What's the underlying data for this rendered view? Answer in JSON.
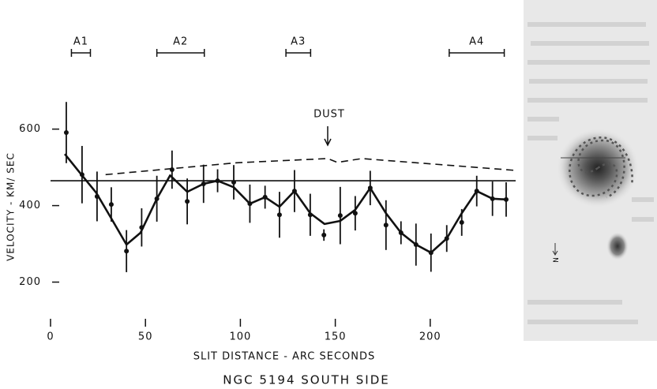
{
  "chart_data": {
    "type": "line",
    "caption": "NGC 5194    SOUTH SIDE",
    "xlabel": "SLIT DISTANCE - ARC SECONDS",
    "ylabel": "VELOCITY - KM/ SEC",
    "xlim": [
      0,
      245
    ],
    "ylim": [
      100,
      690
    ],
    "xticks": [
      0,
      50,
      100,
      150,
      200
    ],
    "yticks": [
      200,
      400,
      600
    ],
    "annotation": {
      "text": "DUST",
      "x": 146
    },
    "regions": [
      {
        "label": "A1",
        "x": [
          11,
          21
        ]
      },
      {
        "label": "A2",
        "x": [
          56,
          81
        ]
      },
      {
        "label": "A3",
        "x": [
          124,
          137
        ]
      },
      {
        "label": "A4",
        "x": [
          210,
          239
        ]
      }
    ],
    "photo_label": "N",
    "series": [
      {
        "type": "scatter",
        "color": "#111111",
        "x": [
          8.3,
          16.6,
          24.5,
          32,
          40,
          48,
          56,
          64,
          72,
          80.6,
          88,
          96.5,
          105,
          113,
          120.6,
          128.5,
          136.8,
          144,
          152.6,
          160.5,
          168.4,
          176.7,
          184.6,
          192.5,
          200.4,
          208.7,
          216.6,
          224.5,
          232.8,
          240
        ],
        "values": [
          591,
          481,
          424,
          403,
          281,
          343,
          418,
          494,
          411,
          457,
          465,
          461,
          405,
          422,
          376,
          438,
          376,
          323,
          374,
          380,
          446,
          349,
          329,
          298,
          277,
          314,
          356,
          438,
          418,
          416
        ],
        "errors": [
          80,
          75,
          65,
          45,
          55,
          50,
          60,
          50,
          60,
          50,
          30,
          45,
          50,
          30,
          60,
          55,
          55,
          15,
          75,
          45,
          45,
          65,
          30,
          55,
          50,
          35,
          35,
          40,
          45,
          45
        ]
      },
      {
        "type": "line",
        "color": "#111111",
        "width": 2.6,
        "x": [
          7.5,
          16.6,
          24,
          31.6,
          40,
          47.4,
          56,
          63,
          72,
          80.6,
          88,
          96.5,
          105,
          113,
          120.6,
          128.5,
          136.8,
          144.3,
          152.6,
          160.5,
          168.4,
          176.7,
          184.6,
          192.5,
          200.4,
          208.7,
          216.6,
          224.5,
          232.8,
          240
        ],
        "values": [
          535,
          479,
          434,
          370,
          298,
          329,
          418,
          479,
          436,
          457,
          465,
          448,
          405,
          422,
          397,
          438,
          380,
          352,
          360,
          389,
          446,
          380,
          329,
          298,
          277,
          314,
          380,
          438,
          418,
          416
        ]
      },
      {
        "type": "line",
        "color": "#111111",
        "width": 1.6,
        "dashed": true,
        "x": [
          29,
          98,
          146,
          151,
          164,
          245
        ],
        "values": [
          481,
          512,
          523,
          513,
          523,
          492
        ]
      },
      {
        "type": "line",
        "color": "#111111",
        "width": 1.6,
        "x": [
          0,
          245
        ],
        "values": [
          465,
          465
        ]
      }
    ]
  }
}
